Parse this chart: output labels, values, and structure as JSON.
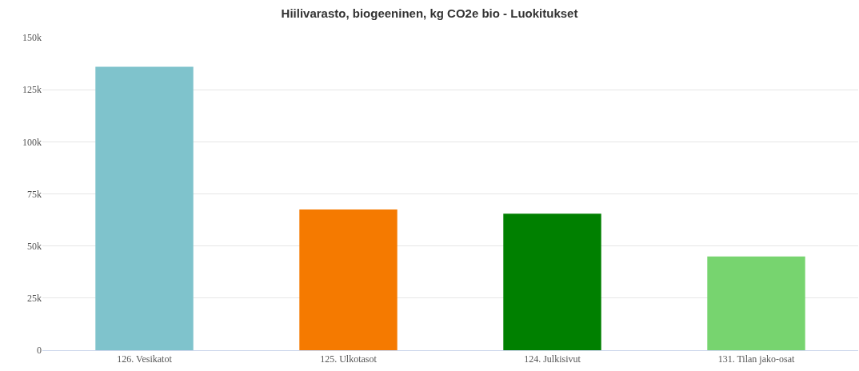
{
  "chart_data": {
    "type": "bar",
    "title": "Hiilivarasto, biogeeninen, kg CO2e bio - Luokitukset",
    "categories": [
      "126. Vesikatot",
      "125. Ulkotasot",
      "124. Julkisivut",
      "131. Tilan jako-osat"
    ],
    "values": [
      136000,
      67500,
      65500,
      45000
    ],
    "colors": [
      "#7fc3cc",
      "#f57a00",
      "#008000",
      "#77d46f"
    ],
    "ylim": [
      0,
      150000
    ],
    "yticks": [
      {
        "value": 0,
        "label": "0"
      },
      {
        "value": 25000,
        "label": "25k"
      },
      {
        "value": 50000,
        "label": "50k"
      },
      {
        "value": 75000,
        "label": "75k"
      },
      {
        "value": 100000,
        "label": "100k"
      },
      {
        "value": 125000,
        "label": "125k"
      },
      {
        "value": 150000,
        "label": "150k"
      }
    ],
    "grid": "y"
  }
}
